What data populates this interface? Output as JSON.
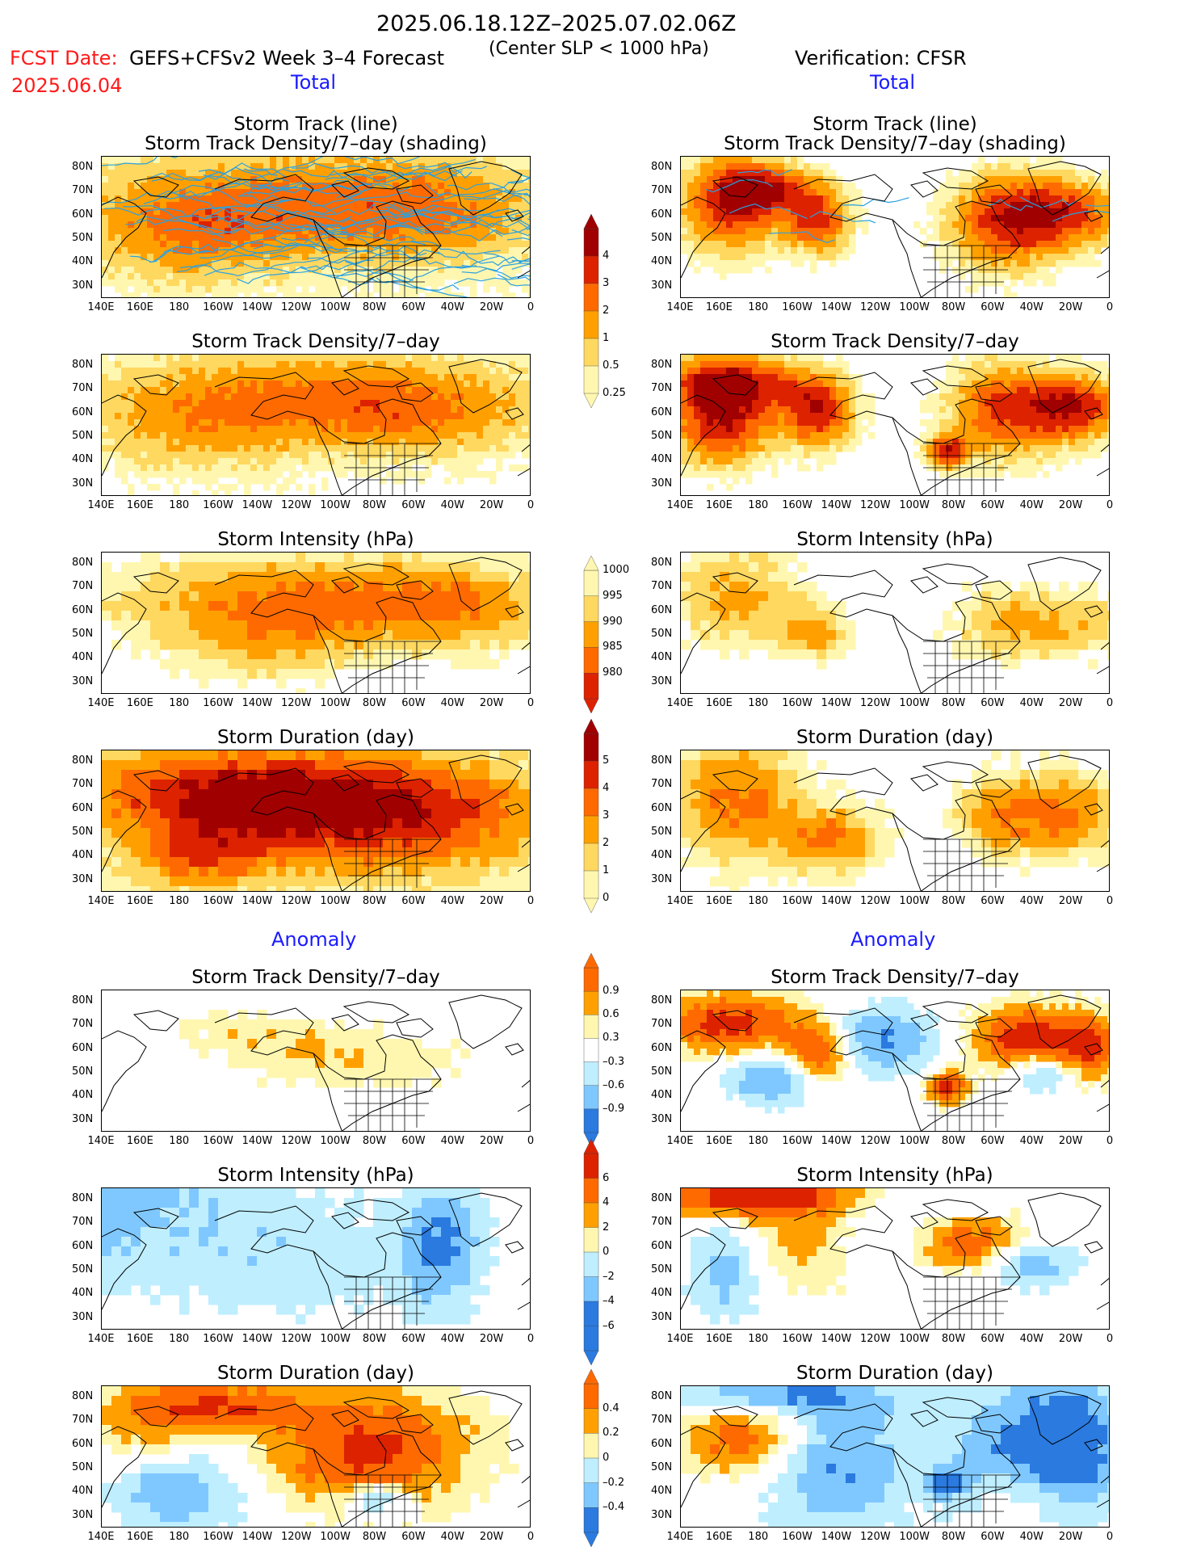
{
  "header": {
    "period": "2025.06.18.12Z–2025.07.02.06Z",
    "fcst_label": "FCST Date:",
    "fcst_date": "2025.06.04",
    "model": "GEFS+CFSv2 Week 3–4 Forecast",
    "criterion": "(Center SLP < 1000 hPa)",
    "verification": "Verification: CFSR"
  },
  "sections": {
    "total_left": "Total",
    "total_right": "Total",
    "anomaly_left": "Anomaly",
    "anomaly_right": "Anomaly"
  },
  "titles": {
    "track_line": "Storm Track (line)",
    "track_density_shading": "Storm Track Density/7–day (shading)",
    "track_density": "Storm Track Density/7–day",
    "intensity": "Storm Intensity (hPa)",
    "duration": "Storm Duration (day)"
  },
  "axes": {
    "lat_labels": [
      "80N",
      "70N",
      "60N",
      "50N",
      "40N",
      "30N"
    ],
    "lon_labels": [
      "140E",
      "160E",
      "180",
      "160W",
      "140W",
      "120W",
      "100W",
      "80W",
      "60W",
      "40W",
      "20W",
      "0"
    ]
  },
  "colorbars": {
    "density_total": {
      "labels": [
        "4",
        "3",
        "2",
        "1",
        "0.5",
        "0.25"
      ]
    },
    "intensity_total": {
      "labels": [
        "1000",
        "995",
        "990",
        "985",
        "980"
      ]
    },
    "duration_total": {
      "labels": [
        "5",
        "4",
        "3",
        "2",
        "1",
        "0"
      ]
    },
    "density_anom": {
      "labels": [
        "0.9",
        "0.6",
        "0.3",
        "–0.3",
        "–0.6",
        "–0.9"
      ]
    },
    "intensity_anom": {
      "labels": [
        "6",
        "4",
        "2",
        "0",
        "–2",
        "–4",
        "–6"
      ]
    },
    "duration_anom": {
      "labels": [
        "0.4",
        "0.2",
        "0",
        "–0.2",
        "–0.4"
      ]
    }
  },
  "colors": {
    "shade_1": "#fff7b0",
    "shade_2": "#ffd860",
    "shade_3": "#ffa000",
    "shade_4": "#ff6a00",
    "shade_5": "#dd2200",
    "shade_6": "#a00000",
    "neg_1": "#bfeeff",
    "neg_2": "#7fc8ff",
    "neg_3": "#2a7ae0",
    "track_line": "#2aa0e0",
    "header_red": "#ff1a1a",
    "section_blue": "#1a1aff"
  }
}
